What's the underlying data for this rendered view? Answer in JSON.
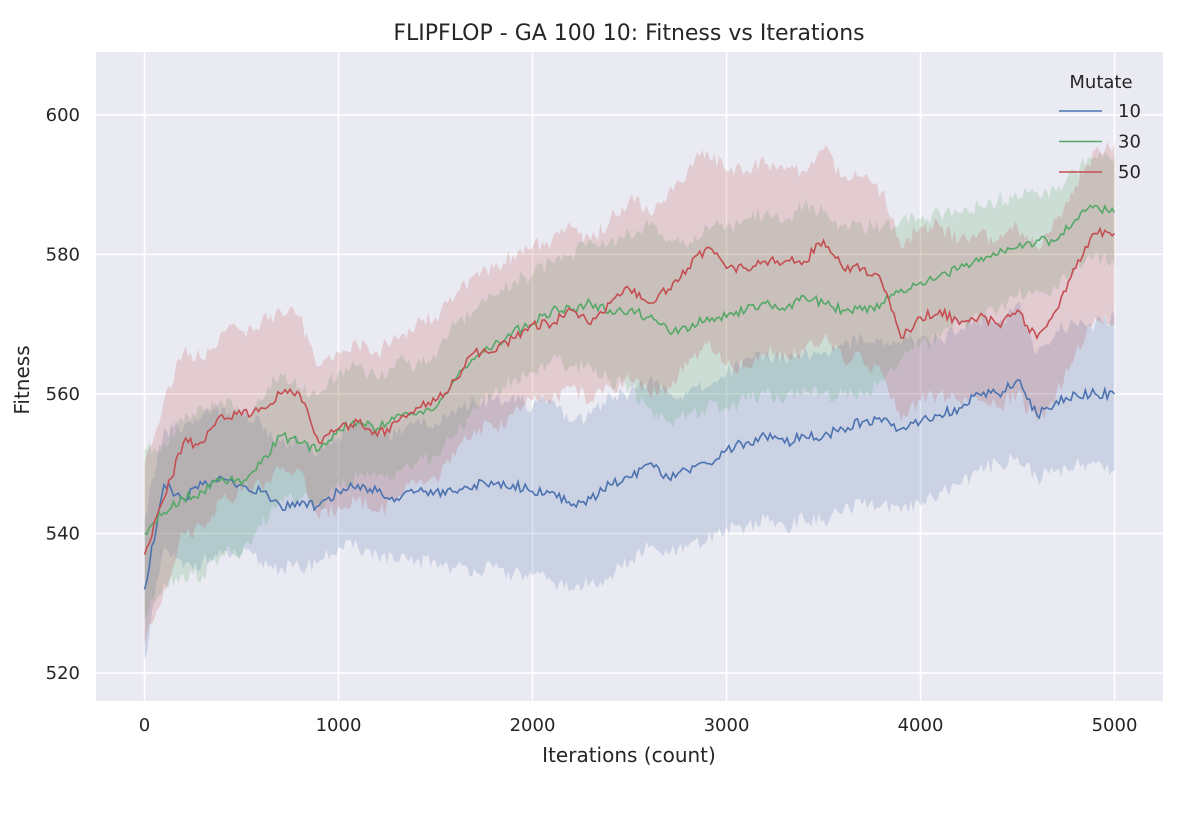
{
  "chart_data": {
    "type": "line",
    "title": "FLIPFLOP - GA 100 10: Fitness vs Iterations",
    "xlabel": "Iterations (count)",
    "ylabel": "Fitness",
    "xlim": [
      -250,
      5250
    ],
    "ylim": [
      516,
      609
    ],
    "xticks": [
      0,
      1000,
      2000,
      3000,
      4000,
      5000
    ],
    "yticks": [
      520,
      540,
      560,
      580,
      600
    ],
    "grid": true,
    "background": "#eaeaf2",
    "legend": {
      "title": "Mutate",
      "placement": "top-right"
    },
    "series": [
      {
        "name": "10",
        "color": "#4c72b0",
        "x": [
          0,
          100,
          200,
          300,
          400,
          500,
          600,
          700,
          800,
          900,
          1000,
          1100,
          1200,
          1300,
          1400,
          1500,
          1600,
          1700,
          1800,
          1900,
          2000,
          2100,
          2200,
          2300,
          2400,
          2500,
          2600,
          2700,
          2800,
          2900,
          3000,
          3100,
          3200,
          3300,
          3400,
          3500,
          3600,
          3700,
          3800,
          3900,
          4000,
          4100,
          4200,
          4300,
          4400,
          4500,
          4600,
          4700,
          4800,
          4900,
          5000
        ],
        "y": [
          532,
          547,
          545,
          547,
          548,
          547,
          546,
          544,
          544,
          544,
          546,
          547,
          546,
          545,
          546,
          546,
          546,
          547,
          547,
          547,
          546,
          546,
          544,
          545,
          547,
          548,
          550,
          548,
          549,
          550,
          552,
          553,
          554,
          553,
          554,
          554,
          555,
          556,
          556,
          555,
          556,
          557,
          558,
          560,
          560,
          562,
          557,
          559,
          560,
          560,
          560
        ],
        "lower": [
          522,
          538,
          535,
          536,
          537,
          537,
          536,
          535,
          535,
          536,
          538,
          538,
          537,
          536,
          536,
          536,
          535,
          535,
          535,
          534,
          534,
          533,
          532,
          533,
          534,
          536,
          538,
          537,
          538,
          539,
          541,
          541,
          542,
          541,
          542,
          542,
          543,
          544,
          544,
          543,
          544,
          546,
          547,
          549,
          550,
          551,
          548,
          549,
          550,
          550,
          549
        ],
        "upper": [
          542,
          555,
          555,
          557,
          558,
          557,
          556,
          553,
          553,
          552,
          554,
          556,
          555,
          554,
          556,
          556,
          557,
          559,
          559,
          560,
          558,
          559,
          556,
          557,
          560,
          560,
          562,
          560,
          560,
          561,
          563,
          565,
          566,
          565,
          566,
          566,
          567,
          568,
          568,
          567,
          568,
          568,
          569,
          571,
          570,
          573,
          566,
          569,
          570,
          570,
          571
        ]
      },
      {
        "name": "30",
        "color": "#55a868",
        "x": [
          0,
          100,
          200,
          300,
          400,
          500,
          600,
          700,
          800,
          900,
          1000,
          1100,
          1200,
          1300,
          1400,
          1500,
          1600,
          1700,
          1800,
          1900,
          2000,
          2100,
          2200,
          2300,
          2400,
          2500,
          2600,
          2700,
          2800,
          2900,
          3000,
          3100,
          3200,
          3300,
          3400,
          3500,
          3600,
          3700,
          3800,
          3900,
          4000,
          4100,
          4200,
          4300,
          4400,
          4500,
          4600,
          4700,
          4800,
          4900,
          5000
        ],
        "y": [
          540,
          543,
          545,
          546,
          548,
          547,
          550,
          554,
          553,
          552,
          555,
          556,
          555,
          557,
          557,
          558,
          562,
          565,
          567,
          569,
          570,
          572,
          572,
          573,
          572,
          572,
          571,
          569,
          569,
          571,
          571,
          572,
          573,
          572,
          574,
          573,
          572,
          572,
          573,
          575,
          576,
          577,
          578,
          579,
          580,
          581,
          582,
          582,
          585,
          587,
          586
        ],
        "lower": [
          528,
          533,
          534,
          534,
          537,
          537,
          541,
          545,
          545,
          544,
          547,
          548,
          548,
          549,
          550,
          551,
          554,
          558,
          560,
          562,
          563,
          565,
          564,
          564,
          562,
          561,
          558,
          556,
          557,
          558,
          558,
          559,
          560,
          559,
          561,
          560,
          560,
          560,
          562,
          565,
          567,
          568,
          570,
          571,
          572,
          574,
          575,
          575,
          578,
          580,
          578
        ],
        "upper": [
          552,
          553,
          556,
          558,
          559,
          557,
          559,
          563,
          561,
          560,
          563,
          564,
          562,
          565,
          564,
          565,
          570,
          572,
          574,
          576,
          577,
          579,
          580,
          582,
          582,
          583,
          584,
          582,
          581,
          584,
          584,
          585,
          586,
          585,
          587,
          586,
          584,
          584,
          584,
          585,
          585,
          586,
          586,
          587,
          588,
          588,
          589,
          589,
          592,
          594,
          594
        ]
      },
      {
        "name": "50",
        "color": "#c44e52",
        "x": [
          0,
          100,
          200,
          300,
          400,
          500,
          600,
          700,
          800,
          900,
          1000,
          1100,
          1200,
          1300,
          1400,
          1500,
          1600,
          1700,
          1800,
          1900,
          2000,
          2100,
          2200,
          2300,
          2400,
          2500,
          2600,
          2700,
          2800,
          2900,
          3000,
          3100,
          3200,
          3300,
          3400,
          3500,
          3600,
          3700,
          3800,
          3900,
          4000,
          4100,
          4200,
          4300,
          4400,
          4500,
          4600,
          4700,
          4800,
          4900,
          5000
        ],
        "y": [
          537,
          545,
          553,
          553,
          557,
          557,
          558,
          560,
          560,
          553,
          555,
          556,
          554,
          556,
          558,
          559,
          562,
          566,
          566,
          568,
          570,
          570,
          572,
          570,
          573,
          575,
          573,
          575,
          578,
          581,
          578,
          578,
          579,
          579,
          579,
          582,
          578,
          578,
          576,
          568,
          571,
          572,
          570,
          571,
          570,
          572,
          568,
          572,
          578,
          583,
          583
        ],
        "lower": [
          524,
          532,
          540,
          541,
          545,
          546,
          547,
          549,
          549,
          542,
          544,
          545,
          543,
          545,
          547,
          548,
          551,
          555,
          555,
          557,
          559,
          559,
          561,
          559,
          561,
          562,
          560,
          561,
          564,
          567,
          564,
          564,
          566,
          566,
          566,
          568,
          565,
          565,
          563,
          556,
          559,
          560,
          559,
          559,
          558,
          560,
          556,
          560,
          566,
          571,
          570
        ],
        "upper": [
          550,
          559,
          566,
          565,
          569,
          569,
          570,
          572,
          571,
          564,
          566,
          567,
          566,
          568,
          570,
          571,
          574,
          577,
          578,
          580,
          581,
          582,
          584,
          582,
          585,
          588,
          586,
          589,
          592,
          595,
          592,
          592,
          593,
          592,
          592,
          595,
          591,
          591,
          589,
          581,
          584,
          584,
          582,
          583,
          582,
          584,
          581,
          585,
          590,
          595,
          596
        ]
      }
    ]
  }
}
